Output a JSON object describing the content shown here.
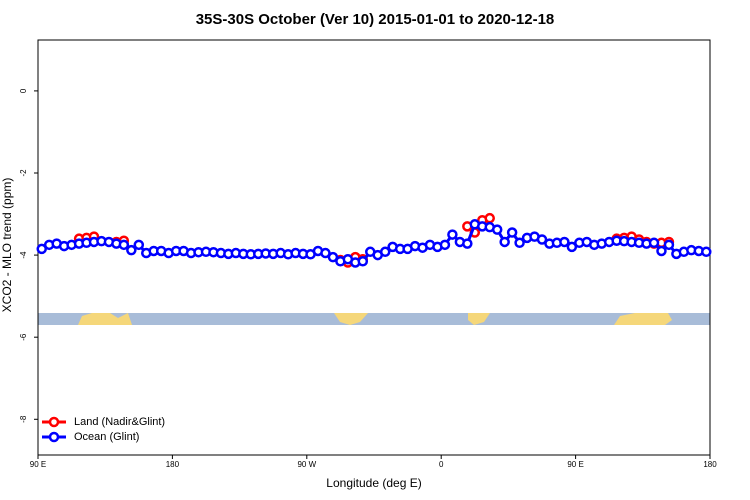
{
  "chart_data": {
    "type": "line",
    "title": "35S-30S October (Ver 10)   2015-01-01 to 2020-12-18",
    "xlabel": "Longitude (deg E)",
    "ylabel": "XCO2 - MLO trend (ppm)",
    "x": [
      92.5,
      97.5,
      102.5,
      107.5,
      112.5,
      117.5,
      122.5,
      127.5,
      132.5,
      137.5,
      142.5,
      147.5,
      152.5,
      157.5,
      162.5,
      167.5,
      172.5,
      177.5,
      182.5,
      187.5,
      192.5,
      197.5,
      202.5,
      207.5,
      212.5,
      217.5,
      222.5,
      227.5,
      232.5,
      237.5,
      242.5,
      247.5,
      252.5,
      257.5,
      262.5,
      267.5,
      272.5,
      277.5,
      282.5,
      287.5,
      292.5,
      297.5,
      302.5,
      307.5,
      312.5,
      317.5,
      322.5,
      327.5,
      332.5,
      337.5,
      342.5,
      347.5,
      352.5,
      357.5,
      362.5,
      367.5,
      372.5,
      377.5,
      382.5,
      387.5,
      392.5,
      397.5,
      402.5,
      407.5,
      412.5,
      417.5,
      422.5,
      427.5,
      432.5,
      437.5,
      442.5,
      447.5,
      452.5,
      457.5,
      462.5,
      467.5,
      472.5,
      477.5,
      482.5,
      487.5,
      492.5,
      497.5,
      502.5,
      507.5,
      512.5,
      517.5,
      522.5,
      527.5,
      532.5,
      537.5
    ],
    "series": [
      {
        "name": "Land (Nadir&Glint)",
        "color": "#ff0000",
        "values": [
          null,
          null,
          null,
          null,
          null,
          -3.6,
          -3.58,
          -3.55,
          null,
          null,
          -3.68,
          -3.65,
          null,
          null,
          null,
          null,
          null,
          null,
          null,
          null,
          null,
          null,
          null,
          null,
          null,
          null,
          null,
          null,
          null,
          null,
          null,
          null,
          null,
          null,
          null,
          null,
          null,
          null,
          null,
          null,
          -4.12,
          -4.18,
          -4.05,
          -4.1,
          null,
          null,
          null,
          null,
          null,
          null,
          null,
          null,
          null,
          null,
          null,
          null,
          null,
          -3.3,
          -3.45,
          -3.15,
          -3.1,
          null,
          null,
          null,
          null,
          null,
          null,
          null,
          null,
          null,
          null,
          null,
          null,
          null,
          null,
          null,
          null,
          -3.6,
          -3.58,
          -3.55,
          -3.62,
          -3.68,
          -3.72,
          -3.7,
          -3.68,
          null,
          null,
          null,
          null,
          null
        ]
      },
      {
        "name": "Ocean (Glint)",
        "color": "#0000ff",
        "values": [
          -3.85,
          -3.75,
          -3.72,
          -3.78,
          -3.75,
          -3.72,
          -3.7,
          -3.68,
          -3.66,
          -3.68,
          -3.72,
          -3.75,
          -3.88,
          -3.75,
          -3.95,
          -3.9,
          -3.9,
          -3.95,
          -3.9,
          -3.9,
          -3.95,
          -3.93,
          -3.92,
          -3.93,
          -3.95,
          -3.97,
          -3.95,
          -3.97,
          -3.98,
          -3.97,
          -3.96,
          -3.97,
          -3.95,
          -3.98,
          -3.95,
          -3.97,
          -3.98,
          -3.9,
          -3.95,
          -4.05,
          -4.15,
          -4.1,
          -4.18,
          -4.15,
          -3.92,
          -4.0,
          -3.92,
          -3.8,
          -3.85,
          -3.85,
          -3.78,
          -3.82,
          -3.75,
          -3.8,
          -3.75,
          -3.5,
          -3.68,
          -3.72,
          -3.25,
          -3.3,
          -3.32,
          -3.38,
          -3.68,
          -3.45,
          -3.7,
          -3.58,
          -3.55,
          -3.62,
          -3.72,
          -3.7,
          -3.68,
          -3.8,
          -3.7,
          -3.68,
          -3.75,
          -3.72,
          -3.68,
          -3.65,
          -3.66,
          -3.68,
          -3.7,
          -3.72,
          -3.7,
          -3.9,
          -3.75,
          -3.97,
          -3.92,
          -3.88,
          -3.9,
          -3.92
        ]
      }
    ],
    "xlim": [
      90,
      540
    ],
    "xticks": [
      {
        "value": 90,
        "label": "90 E"
      },
      180,
      {
        "value": 270,
        "label": "90 W"
      },
      {
        "value": 360,
        "label": "0"
      },
      {
        "value": 450,
        "label": "90 E"
      },
      {
        "value": 540,
        "label": "180"
      }
    ],
    "ylim": [
      -8.87,
      1.24
    ],
    "yticks": [
      0,
      -2,
      -4,
      -6,
      -8
    ],
    "legend": "bottom-left"
  }
}
